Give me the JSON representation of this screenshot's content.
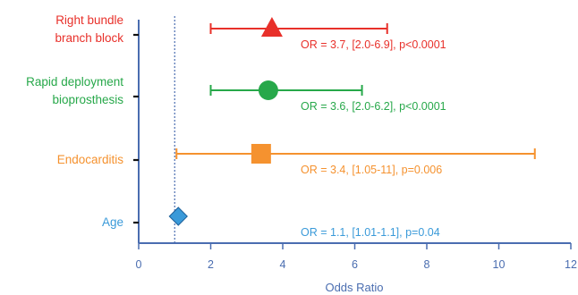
{
  "chart_data": {
    "type": "forest",
    "xlabel": "Odds Ratio",
    "xlim": [
      0,
      12
    ],
    "xticks": [
      0,
      2,
      4,
      6,
      8,
      10,
      12
    ],
    "reference_line": 1,
    "rows": [
      {
        "label_lines": [
          "Right bundle",
          "branch block"
        ],
        "or": 3.7,
        "ci_low": 2.0,
        "ci_high": 6.9,
        "annotation": "OR = 3.7, [2.0-6.9], p<0.0001",
        "color": "#e8302a",
        "marker": "triangle"
      },
      {
        "label_lines": [
          "Rapid deployment",
          "bioprosthesis"
        ],
        "or": 3.6,
        "ci_low": 2.0,
        "ci_high": 6.2,
        "annotation": "OR = 3.6, [2.0-6.2], p<0.0001",
        "color": "#27a84a",
        "marker": "circle"
      },
      {
        "label_lines": [
          "Endocarditis"
        ],
        "or": 3.4,
        "ci_low": 1.05,
        "ci_high": 11,
        "annotation": "OR = 3.4, [1.05-11], p=0.006",
        "color": "#f5922f",
        "marker": "square"
      },
      {
        "label_lines": [
          "Age"
        ],
        "or": 1.1,
        "ci_low": 1.01,
        "ci_high": 1.1,
        "annotation": "OR = 1.1, [1.01-1.1], p=0.04",
        "color": "#3a9ad9",
        "marker": "diamond"
      }
    ]
  }
}
